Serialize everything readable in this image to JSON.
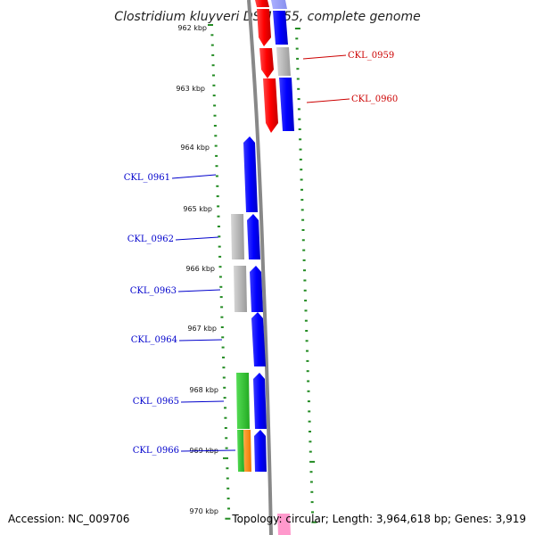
{
  "title": "Clostridium kluyveri DSM 555, complete genome",
  "footer": {
    "accession": "Accession: NC_009706",
    "summary": "Topology: circular; Length: 3,964,618 bp; Genes: 3,919"
  },
  "ticks": [
    "962 kbp",
    "963 kbp",
    "964 kbp",
    "965 kbp",
    "966 kbp",
    "967 kbp",
    "968 kbp",
    "969 kbp",
    "970 kbp"
  ],
  "gene_labels": {
    "CKL_0959": "CKL_0959",
    "CKL_0960": "CKL_0960",
    "CKL_0961": "CKL_0961",
    "CKL_0962": "CKL_0962",
    "CKL_0963": "CKL_0963",
    "CKL_0964": "CKL_0964",
    "CKL_0965": "CKL_0965",
    "CKL_0966": "CKL_0966"
  },
  "colors": {
    "forward_strand": "#ff0000",
    "reverse_strand": "#0000ff",
    "gray_feature": "#b8b8b8",
    "green_feature": "#33cc33",
    "orange_feature": "#ff8c1a",
    "pink_feature": "#ff99cc",
    "backbone": "#888888",
    "ticks": "#228b22",
    "label_forward": "#cc0000",
    "label_reverse": "#0000cc"
  }
}
